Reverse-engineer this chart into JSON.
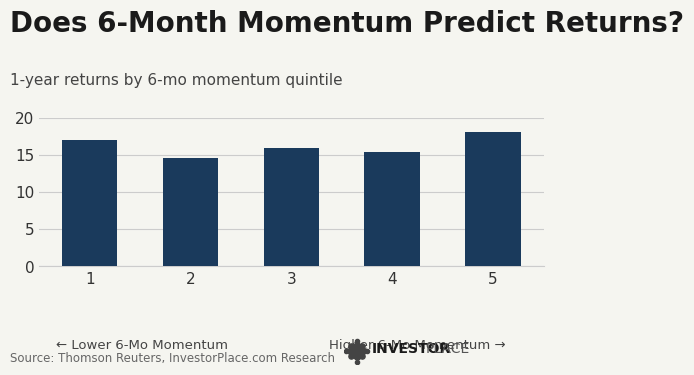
{
  "title": "Does 6-Month Momentum Predict Returns?",
  "subtitle": "1-year returns by 6-mo momentum quintile",
  "categories": [
    "1",
    "2",
    "3",
    "4",
    "5"
  ],
  "values": [
    17.0,
    14.6,
    15.9,
    15.4,
    18.0
  ],
  "bar_color": "#1a3a5c",
  "background_color": "#f5f5f0",
  "ylim": [
    0,
    20
  ],
  "yticks": [
    0,
    5,
    10,
    15,
    20
  ],
  "xlabel_left": "← Lower 6-Mo Momentum",
  "xlabel_right": "Higher 6-Mo Momentum →",
  "source_text": "Source: Thomson Reuters, InvestorPlace.com Research",
  "brand_bold": "INVESTOR",
  "brand_regular": "PLACE",
  "title_fontsize": 20,
  "subtitle_fontsize": 11,
  "tick_fontsize": 11,
  "source_fontsize": 8.5
}
